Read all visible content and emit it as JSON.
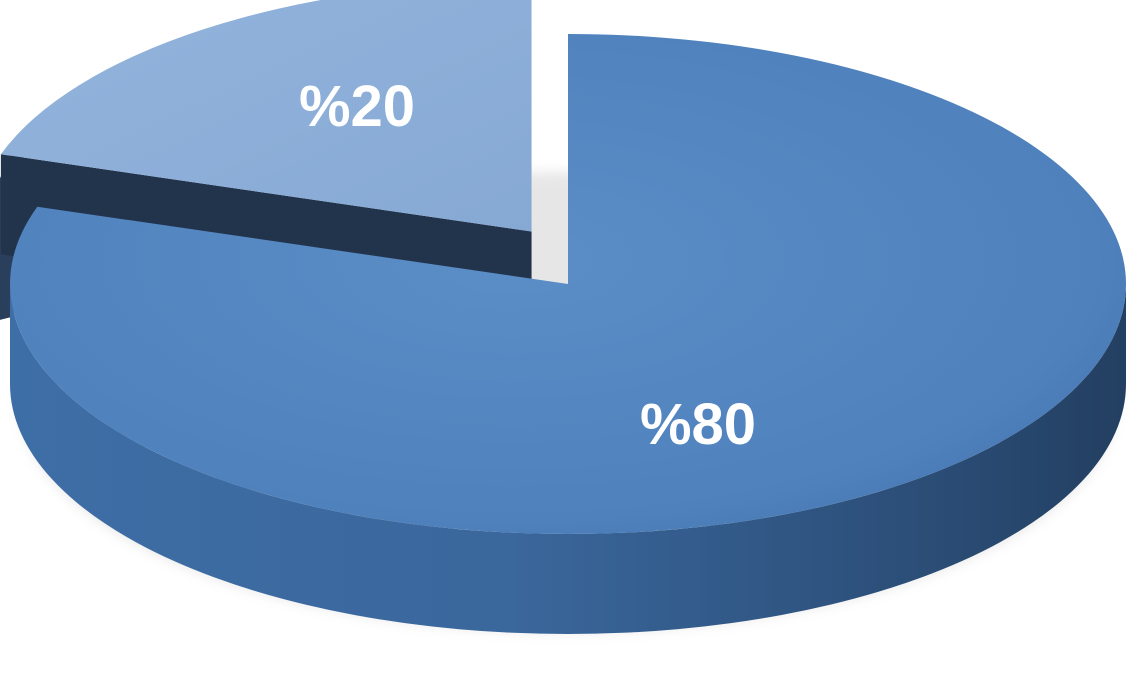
{
  "chart_data": {
    "type": "pie",
    "style": "3d-exploded",
    "title": "",
    "slices": [
      {
        "label": "%80",
        "value": 80,
        "color": "#4f81bd"
      },
      {
        "label": "%20",
        "value": 20,
        "color": "#8eb0d9"
      }
    ]
  }
}
